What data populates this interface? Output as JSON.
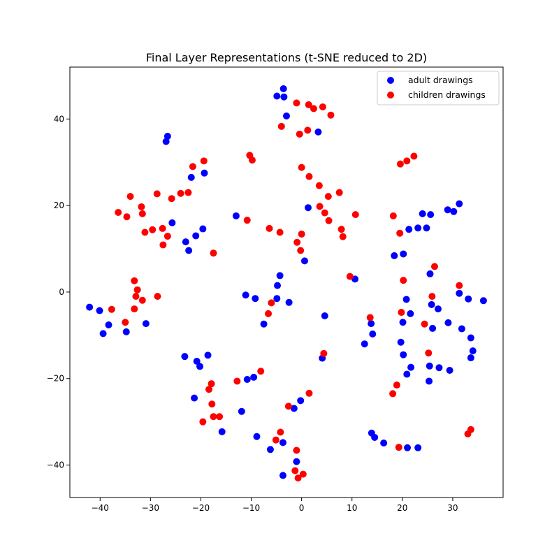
{
  "chart_data": {
    "type": "scatter",
    "title": "Final Layer Representations (t-SNE reduced to 2D)",
    "xlabel": "",
    "ylabel": "",
    "xlim": [
      -46,
      40
    ],
    "ylim": [
      -47.5,
      52
    ],
    "xticks": [
      -40,
      -30,
      -20,
      -10,
      0,
      10,
      20,
      30
    ],
    "yticks": [
      -40,
      -20,
      0,
      20,
      40
    ],
    "grid": false,
    "legend_position": "top-right",
    "series": [
      {
        "name": "adult drawings",
        "color": "#0000ff",
        "points": [
          [
            -42.1,
            -3.5
          ],
          [
            -40.1,
            -4.3
          ],
          [
            -38.3,
            -7.6
          ],
          [
            -39.4,
            -9.6
          ],
          [
            -34.8,
            -9.2
          ],
          [
            -30.9,
            -7.3
          ],
          [
            -26.6,
            36.0
          ],
          [
            -26.9,
            34.8
          ],
          [
            -21.9,
            26.5
          ],
          [
            -19.3,
            27.5
          ],
          [
            -25.7,
            16.0
          ],
          [
            -19.6,
            14.6
          ],
          [
            -21.0,
            13.0
          ],
          [
            -23.0,
            11.6
          ],
          [
            -22.4,
            9.6
          ],
          [
            -23.2,
            -14.9
          ],
          [
            -20.8,
            -16.0
          ],
          [
            -20.2,
            -17.2
          ],
          [
            -18.6,
            -14.6
          ],
          [
            -21.3,
            -24.5
          ],
          [
            -15.8,
            -32.3
          ],
          [
            -13.0,
            17.6
          ],
          [
            -11.1,
            -0.7
          ],
          [
            -9.2,
            -1.5
          ],
          [
            -7.5,
            -7.4
          ],
          [
            -10.8,
            -20.2
          ],
          [
            -9.5,
            -19.7
          ],
          [
            -11.9,
            -27.6
          ],
          [
            -8.9,
            -33.4
          ],
          [
            -6.2,
            -36.4
          ],
          [
            -3.7,
            -34.8
          ],
          [
            -3.7,
            -42.4
          ],
          [
            -4.3,
            3.8
          ],
          [
            -4.8,
            1.5
          ],
          [
            -4.9,
            -1.5
          ],
          [
            -2.5,
            -2.4
          ],
          [
            -4.9,
            45.3
          ],
          [
            -3.6,
            47.0
          ],
          [
            -3.5,
            45.1
          ],
          [
            -3.0,
            40.7
          ],
          [
            3.3,
            37.0
          ],
          [
            1.3,
            19.5
          ],
          [
            0.6,
            7.2
          ],
          [
            4.6,
            -5.5
          ],
          [
            4.1,
            -15.3
          ],
          [
            -0.2,
            -25.1
          ],
          [
            -1.5,
            -26.9
          ],
          [
            -1.0,
            -39.2
          ],
          [
            10.6,
            3.0
          ],
          [
            13.8,
            -7.3
          ],
          [
            14.1,
            -9.7
          ],
          [
            12.5,
            -12.0
          ],
          [
            13.9,
            -32.6
          ],
          [
            14.5,
            -33.6
          ],
          [
            16.3,
            -34.9
          ],
          [
            21.0,
            -36.0
          ],
          [
            23.1,
            -36.0
          ],
          [
            18.4,
            8.4
          ],
          [
            20.2,
            8.8
          ],
          [
            21.3,
            14.5
          ],
          [
            23.1,
            14.8
          ],
          [
            24.8,
            14.8
          ],
          [
            24.0,
            18.1
          ],
          [
            25.6,
            17.9
          ],
          [
            29.0,
            19.0
          ],
          [
            30.2,
            18.6
          ],
          [
            31.3,
            20.4
          ],
          [
            25.5,
            4.2
          ],
          [
            25.8,
            -2.9
          ],
          [
            27.1,
            -3.9
          ],
          [
            20.8,
            -1.7
          ],
          [
            21.6,
            -5.0
          ],
          [
            20.1,
            -7.0
          ],
          [
            26.0,
            -8.4
          ],
          [
            19.7,
            -11.6
          ],
          [
            20.2,
            -14.5
          ],
          [
            21.7,
            -17.4
          ],
          [
            20.9,
            -19.0
          ],
          [
            25.4,
            -17.1
          ],
          [
            27.3,
            -17.5
          ],
          [
            29.4,
            -18.1
          ],
          [
            25.3,
            -20.6
          ],
          [
            29.1,
            -7.1
          ],
          [
            31.3,
            -0.3
          ],
          [
            33.1,
            -1.6
          ],
          [
            36.1,
            -2.0
          ],
          [
            31.8,
            -8.5
          ],
          [
            33.6,
            -10.6
          ],
          [
            34.0,
            -13.6
          ],
          [
            33.6,
            -15.2
          ]
        ]
      },
      {
        "name": "children drawings",
        "color": "#ff0000",
        "points": [
          [
            -37.7,
            -4.0
          ],
          [
            -35.0,
            -7.0
          ],
          [
            -33.2,
            2.6
          ],
          [
            -32.6,
            0.5
          ],
          [
            -32.9,
            -1.0
          ],
          [
            -33.2,
            -3.9
          ],
          [
            -31.6,
            -1.9
          ],
          [
            -28.6,
            -1.0
          ],
          [
            -36.4,
            18.4
          ],
          [
            -34.7,
            17.4
          ],
          [
            -34.0,
            22.1
          ],
          [
            -31.8,
            19.7
          ],
          [
            -31.6,
            18.1
          ],
          [
            -31.1,
            13.8
          ],
          [
            -29.6,
            14.4
          ],
          [
            -28.7,
            22.7
          ],
          [
            -27.6,
            14.7
          ],
          [
            -27.5,
            10.9
          ],
          [
            -26.6,
            12.9
          ],
          [
            -25.8,
            21.6
          ],
          [
            -24.0,
            22.8
          ],
          [
            -22.5,
            23.0
          ],
          [
            -21.6,
            29.0
          ],
          [
            -19.4,
            30.3
          ],
          [
            -17.5,
            9.0
          ],
          [
            -19.6,
            -30.0
          ],
          [
            -18.4,
            -22.5
          ],
          [
            -17.9,
            -21.2
          ],
          [
            -17.8,
            -25.9
          ],
          [
            -17.5,
            -28.8
          ],
          [
            -16.3,
            -28.8
          ],
          [
            -12.8,
            -20.6
          ],
          [
            -10.3,
            31.6
          ],
          [
            -9.8,
            30.5
          ],
          [
            -10.8,
            16.6
          ],
          [
            -6.4,
            14.7
          ],
          [
            -6.6,
            -5.0
          ],
          [
            -6.0,
            -2.5
          ],
          [
            -8.1,
            -18.3
          ],
          [
            -4.3,
            13.8
          ],
          [
            -5.1,
            -34.2
          ],
          [
            -4.2,
            -32.4
          ],
          [
            -2.6,
            -26.4
          ],
          [
            -1.0,
            -36.6
          ],
          [
            -1.3,
            -41.3
          ],
          [
            -0.7,
            -43.0
          ],
          [
            0.3,
            -42.1
          ],
          [
            1.5,
            -23.4
          ],
          [
            -1.0,
            43.7
          ],
          [
            1.4,
            43.3
          ],
          [
            2.4,
            42.4
          ],
          [
            4.2,
            42.8
          ],
          [
            5.8,
            40.9
          ],
          [
            -4.0,
            38.3
          ],
          [
            -0.4,
            36.5
          ],
          [
            1.2,
            37.4
          ],
          [
            0.0,
            28.8
          ],
          [
            1.5,
            26.7
          ],
          [
            3.5,
            24.6
          ],
          [
            5.3,
            22.1
          ],
          [
            7.5,
            23.0
          ],
          [
            3.6,
            19.8
          ],
          [
            4.6,
            18.3
          ],
          [
            5.4,
            16.5
          ],
          [
            7.9,
            14.5
          ],
          [
            8.2,
            12.8
          ],
          [
            10.7,
            17.9
          ],
          [
            -0.9,
            11.5
          ],
          [
            0.0,
            13.4
          ],
          [
            -0.2,
            9.6
          ],
          [
            9.6,
            3.6
          ],
          [
            4.4,
            -14.2
          ],
          [
            13.6,
            -5.9
          ],
          [
            19.6,
            29.6
          ],
          [
            20.9,
            30.3
          ],
          [
            22.3,
            31.4
          ],
          [
            18.2,
            17.6
          ],
          [
            19.5,
            13.6
          ],
          [
            20.2,
            2.7
          ],
          [
            19.8,
            -4.7
          ],
          [
            26.4,
            5.9
          ],
          [
            25.9,
            -1.0
          ],
          [
            24.4,
            -7.4
          ],
          [
            25.2,
            -14.1
          ],
          [
            31.3,
            1.5
          ],
          [
            18.9,
            -21.5
          ],
          [
            18.1,
            -23.5
          ],
          [
            19.3,
            -35.9
          ],
          [
            33.0,
            -32.8
          ],
          [
            33.6,
            -31.8
          ]
        ]
      }
    ]
  }
}
